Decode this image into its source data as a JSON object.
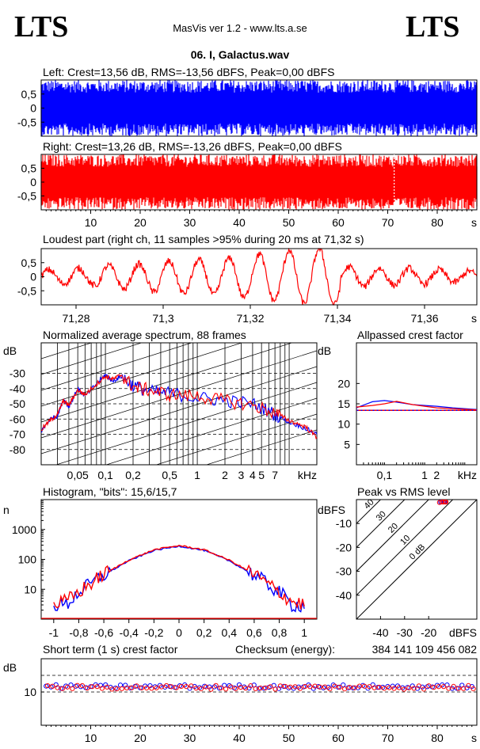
{
  "header": {
    "logo_left": "LTS",
    "logo_right": "LTS",
    "app_title": "MasVis ver 1.2 - www.lts.a.se",
    "file_title": "06. I, Galactus.wav"
  },
  "chart_data": [
    {
      "id": "left",
      "type": "area",
      "title": "Left: Crest=13,56 dB, RMS=-13,56 dBFS, Peak=0,00 dBFS",
      "color": "#0000ff",
      "ylim": [
        -1,
        1
      ],
      "yticks": [
        "0,5",
        "0",
        "-0,5"
      ],
      "ytick_values": [
        0.5,
        0,
        -0.5
      ],
      "envelope": {
        "peak": 1.0,
        "typical": 0.8
      }
    },
    {
      "id": "right",
      "type": "area",
      "title": "Right: Crest=13,26 dB, RMS=-13,26 dBFS, Peak=0,00 dBFS",
      "color": "#ff0000",
      "ylim": [
        -1,
        1
      ],
      "yticks": [
        "0,5",
        "0",
        "-0,5"
      ],
      "ytick_values": [
        0.5,
        0,
        -0.5
      ],
      "marker_s": 71.3,
      "x": [
        10,
        20,
        30,
        40,
        50,
        60,
        70,
        80
      ],
      "xticks": [
        "10",
        "20",
        "30",
        "40",
        "50",
        "60",
        "70",
        "80"
      ],
      "xunit": "s",
      "xlim": [
        0,
        88
      ],
      "envelope": {
        "peak": 1.0,
        "typical": 0.8
      }
    },
    {
      "id": "loudest",
      "type": "line",
      "title": "Loudest part (right ch, 11 samples >95% during 20 ms at 71,32 s)",
      "color": "#ff0000",
      "ylim": [
        -1,
        1
      ],
      "yticks": [
        "0,5",
        "0",
        "-0,5"
      ],
      "ytick_values": [
        0.5,
        0,
        -0.5
      ],
      "xlim": [
        71.272,
        71.372
      ],
      "xticks": [
        "71,28",
        "71,3",
        "71,32",
        "71,34",
        "71,36"
      ],
      "x": [
        71.28,
        71.3,
        71.32,
        71.34,
        71.36
      ],
      "xunit": "s",
      "wave_peaks": [
        0.25,
        0.3,
        0.4,
        0.45,
        0.55,
        0.6,
        0.65,
        0.75,
        0.85,
        0.95,
        1.0,
        0.35,
        0.3,
        0.3,
        0.25,
        0.2
      ]
    },
    {
      "id": "spectrum",
      "type": "line",
      "title": "Normalized average spectrum, 88 frames",
      "ylabel": "dB",
      "yticks": [
        "-30",
        "-40",
        "-50",
        "-60",
        "-70",
        "-80"
      ],
      "ytick_values": [
        -30,
        -40,
        -50,
        -60,
        -70,
        -80
      ],
      "ylim": [
        -90,
        -10
      ],
      "xticks": [
        "0,05",
        "0,1",
        "0,2",
        "0,5",
        "1",
        "2",
        "3",
        "4",
        "5",
        "7"
      ],
      "xtick_values": [
        0.05,
        0.1,
        0.2,
        0.5,
        1,
        2,
        3,
        4,
        5,
        7
      ],
      "xunit": "kHz",
      "xlim_khz": [
        0.02,
        20
      ],
      "series": [
        {
          "color": "#0000ff",
          "x": [
            0.02,
            0.025,
            0.03,
            0.035,
            0.04,
            0.05,
            0.06,
            0.08,
            0.1,
            0.12,
            0.15,
            0.2,
            0.3,
            0.5,
            1,
            2,
            4,
            7,
            10,
            15,
            20
          ],
          "y": [
            -68,
            -60,
            -58,
            -47,
            -52,
            -40,
            -45,
            -37,
            -31,
            -35,
            -32,
            -38,
            -42,
            -43,
            -46,
            -48,
            -50,
            -57,
            -62,
            -66,
            -70
          ]
        },
        {
          "color": "#ff0000",
          "x": [
            0.02,
            0.025,
            0.03,
            0.035,
            0.04,
            0.05,
            0.06,
            0.08,
            0.1,
            0.12,
            0.15,
            0.2,
            0.3,
            0.5,
            1,
            2,
            4,
            7,
            10,
            15,
            20
          ],
          "y": [
            -67,
            -61,
            -57,
            -48,
            -51,
            -41,
            -44,
            -37,
            -32,
            -34,
            -31,
            -39,
            -41,
            -44,
            -45,
            -48,
            -51,
            -56,
            -61,
            -65,
            -72
          ]
        }
      ]
    },
    {
      "id": "allpassed",
      "type": "line",
      "title": "Allpassed crest factor",
      "ylabel": "dB",
      "yticks": [
        "20",
        "15",
        "10",
        "5"
      ],
      "ytick_values": [
        20,
        15,
        10,
        5
      ],
      "ylim": [
        0,
        30
      ],
      "xticks": [
        "0,1",
        "1",
        "2"
      ],
      "xtick_values": [
        0.1,
        1,
        2
      ],
      "xunit": "kHz",
      "xlim_khz": [
        0.02,
        20
      ],
      "reference_db": 13.4,
      "series": [
        {
          "color": "#0000ff",
          "x": [
            0.02,
            0.05,
            0.1,
            0.2,
            0.5,
            1,
            2,
            5,
            20
          ],
          "y": [
            14.0,
            15.5,
            15.8,
            15.4,
            14.8,
            14.6,
            14.4,
            14.0,
            13.6
          ]
        },
        {
          "color": "#ff0000",
          "x": [
            0.02,
            0.05,
            0.1,
            0.2,
            0.5,
            1,
            2,
            5,
            20
          ],
          "y": [
            14.2,
            14.6,
            15.0,
            15.6,
            14.8,
            14.4,
            14.0,
            13.8,
            13.5
          ]
        }
      ]
    },
    {
      "id": "histogram",
      "type": "line",
      "title": "Histogram, \"bits\": 15,6/15,7",
      "ylabel": "n",
      "yscale": "log",
      "yticks": [
        "1000",
        "100",
        "10"
      ],
      "ytick_values": [
        1000,
        100,
        10
      ],
      "ylim": [
        1,
        10000
      ],
      "xlim": [
        -1.1,
        1.1
      ],
      "xticks": [
        "-1",
        "-0,8",
        "-0,6",
        "-0,4",
        "-0,2",
        "0",
        "0,2",
        "0,4",
        "0,6",
        "0,8",
        "1"
      ],
      "xtick_values": [
        -1,
        -0.8,
        -0.6,
        -0.4,
        -0.2,
        0,
        0.2,
        0.4,
        0.6,
        0.8,
        1
      ],
      "series": [
        {
          "color": "#0000ff",
          "x": [
            -1,
            -0.9,
            -0.8,
            -0.6,
            -0.4,
            -0.2,
            0,
            0.2,
            0.4,
            0.6,
            0.8,
            0.9,
            1
          ],
          "y": [
            3,
            3,
            8,
            30,
            90,
            200,
            280,
            200,
            90,
            30,
            8,
            3,
            3
          ]
        },
        {
          "color": "#ff0000",
          "x": [
            -1,
            -0.9,
            -0.8,
            -0.6,
            -0.4,
            -0.2,
            0,
            0.2,
            0.4,
            0.6,
            0.8,
            0.9,
            1
          ],
          "y": [
            3,
            4,
            8,
            32,
            95,
            210,
            290,
            210,
            95,
            32,
            8,
            4,
            3
          ]
        }
      ]
    },
    {
      "id": "peak_vs_rms",
      "type": "scatter",
      "title": "Peak vs RMS level",
      "ylabel": "dBFS",
      "xunit": "dBFS",
      "yticks": [
        "-10",
        "-20",
        "-30",
        "-40"
      ],
      "ytick_values": [
        -10,
        -20,
        -30,
        -40
      ],
      "xticks": [
        "-40",
        "-30",
        "-20"
      ],
      "xtick_values": [
        -40,
        -30,
        -20
      ],
      "xlim": [
        -50,
        0
      ],
      "ylim": [
        -50,
        0
      ],
      "diagonals": [
        "40",
        "30",
        "20",
        "10",
        "0 dB"
      ],
      "diagonal_values": [
        40,
        30,
        20,
        10,
        0
      ],
      "series": [
        {
          "color": "#0000ff",
          "x": [
            -15,
            -14,
            -13.5,
            -13
          ],
          "y": [
            -1,
            -0.5,
            -0.3,
            -0.2
          ]
        },
        {
          "color": "#ff0000",
          "x": [
            -15.5,
            -14.5,
            -13.8,
            -13.2,
            -12.8
          ],
          "y": [
            -1.2,
            -0.8,
            -0.4,
            -0.3,
            -0.1
          ]
        }
      ]
    },
    {
      "id": "short_term_crest",
      "type": "scatter",
      "title": "Short term (1 s) crest factor",
      "ylabel": "dB",
      "yticks": [
        "10"
      ],
      "ytick_values": [
        10
      ],
      "ylim": [
        0,
        20
      ],
      "ref_lines_db": [
        10,
        15
      ],
      "xlim": [
        0,
        88
      ],
      "xticks": [
        "10",
        "20",
        "30",
        "40",
        "50",
        "60",
        "70",
        "80"
      ],
      "xtick_values": [
        10,
        20,
        30,
        40,
        50,
        60,
        70,
        80
      ],
      "xunit": "s",
      "series": [
        {
          "color": "#0000ff",
          "y_mean": 11.6
        },
        {
          "color": "#ff0000",
          "y_mean": 11.4
        }
      ]
    }
  ],
  "checksum": {
    "label": "Checksum (energy):",
    "value": "384 141 109 456 082"
  }
}
